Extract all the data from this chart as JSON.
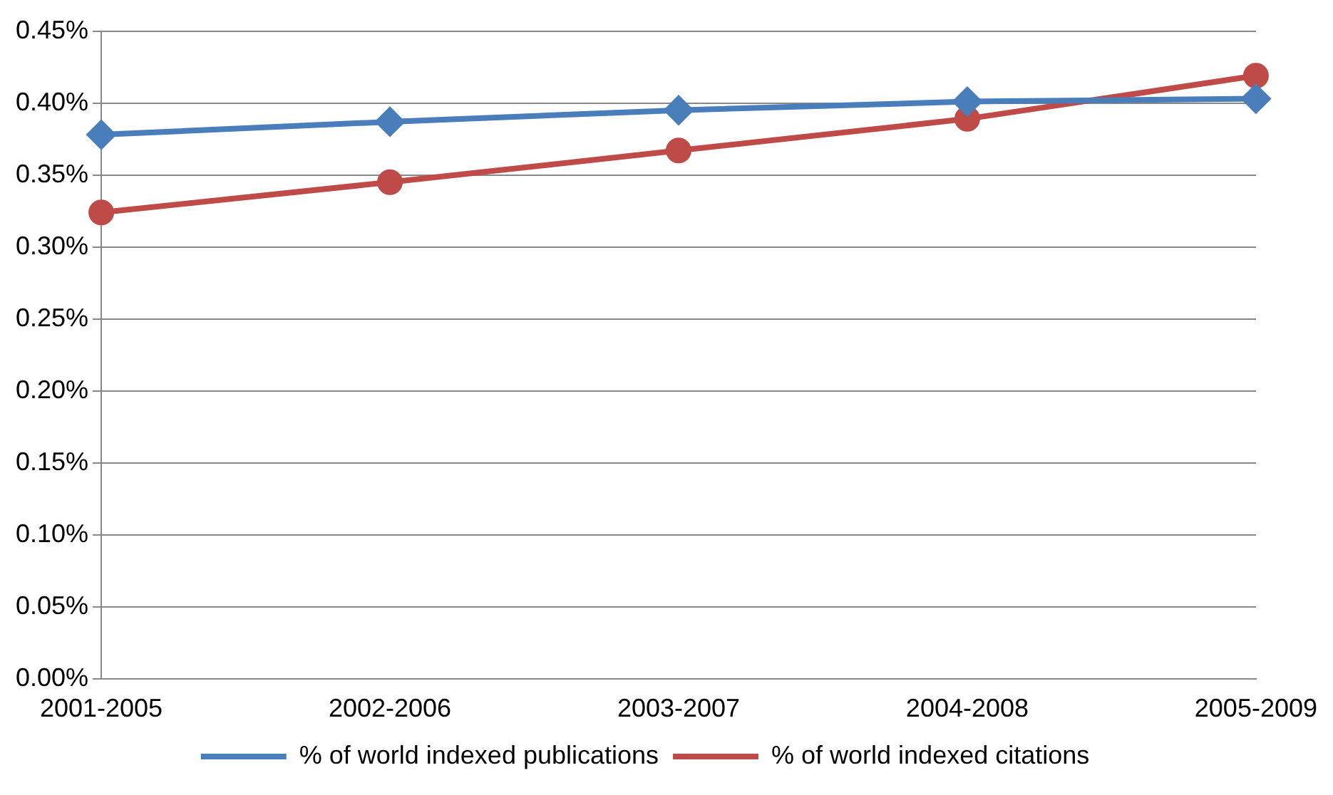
{
  "chart_data": {
    "type": "line",
    "categories": [
      "2001-2005",
      "2002-2006",
      "2003-2007",
      "2004-2008",
      "2005-2009"
    ],
    "series": [
      {
        "name": "% of world indexed publications",
        "color": "#4a7ebb",
        "marker": "diamond",
        "values": [
          0.378,
          0.387,
          0.395,
          0.401,
          0.403
        ]
      },
      {
        "name": "% of world indexed citations",
        "color": "#be4b48",
        "marker": "circle",
        "values": [
          0.324,
          0.345,
          0.367,
          0.389,
          0.419
        ]
      }
    ],
    "ylim": [
      0,
      0.45
    ],
    "yticks": [
      {
        "value": 0,
        "label": "0.00%"
      },
      {
        "value": 0.05,
        "label": "0.05%"
      },
      {
        "value": 0.1,
        "label": "0.10%"
      },
      {
        "value": 0.15,
        "label": "0.15%"
      },
      {
        "value": 0.2,
        "label": "0.20%"
      },
      {
        "value": 0.25,
        "label": "0.25%"
      },
      {
        "value": 0.3,
        "label": "0.30%"
      },
      {
        "value": 0.35,
        "label": "0.35%"
      },
      {
        "value": 0.4,
        "label": "0.40%"
      },
      {
        "value": 0.45,
        "label": "0.45%"
      }
    ],
    "grid": "y",
    "legend": "bottom",
    "line_style": "solid"
  }
}
